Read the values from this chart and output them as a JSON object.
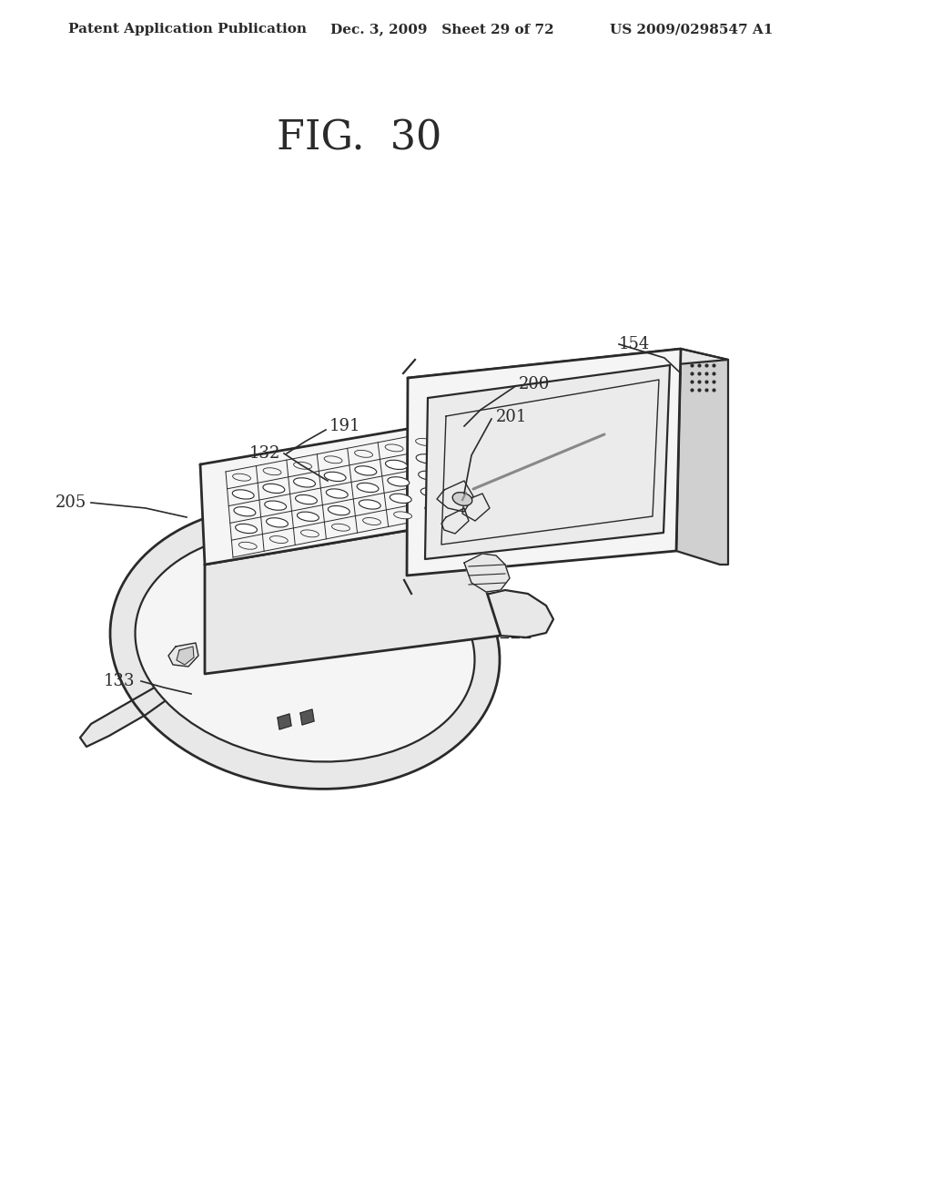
{
  "title": "FIG.  30",
  "header_left": "Patent Application Publication",
  "header_mid": "Dec. 3, 2009   Sheet 29 of 72",
  "header_right": "US 2009/0298547 A1",
  "background": "#ffffff",
  "line_color": "#2a2a2a",
  "fill_light": "#f5f5f5",
  "fill_mid": "#e8e8e8",
  "fill_dark": "#d0d0d0",
  "fill_screen": "#ebebeb",
  "lw_main": 1.6,
  "lw_thick": 2.0,
  "lw_thin": 1.0,
  "header_fontsize": 11,
  "title_fontsize": 32,
  "label_fontsize": 13
}
